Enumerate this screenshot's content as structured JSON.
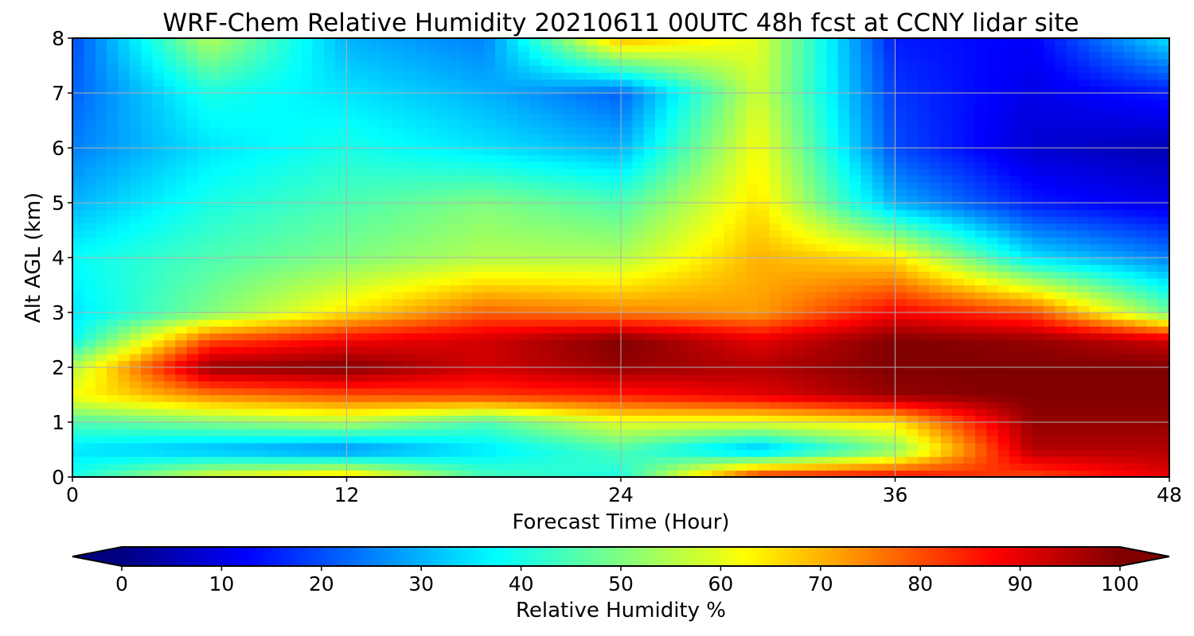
{
  "chart_data": {
    "type": "heatmap",
    "title": "WRF-Chem Relative Humidity 20210611 00UTC 48h fcst at CCNY lidar site",
    "xlabel": "Forecast Time (Hour)",
    "ylabel": "Alt AGL (km)",
    "xlim": [
      0,
      48
    ],
    "ylim": [
      0,
      8
    ],
    "x_ticks": [
      "0",
      "12",
      "24",
      "36",
      "48"
    ],
    "y_ticks": [
      "0",
      "1",
      "2",
      "3",
      "4",
      "5",
      "6",
      "7",
      "8"
    ],
    "grid": true,
    "colorbar": {
      "label": "Relative Humidity %",
      "range": [
        0,
        100
      ],
      "ticks": [
        "0",
        "10",
        "20",
        "30",
        "40",
        "50",
        "60",
        "70",
        "80",
        "90",
        "100"
      ],
      "colormap": "jet",
      "extend": "both"
    },
    "x": [
      0,
      6,
      12,
      18,
      24,
      30,
      36,
      42,
      48
    ],
    "y": [
      0,
      0.5,
      1,
      1.5,
      2,
      2.5,
      3,
      4,
      5,
      6,
      7,
      8
    ],
    "z": [
      [
        40,
        60,
        68,
        45,
        40,
        85,
        88,
        80,
        90
      ],
      [
        35,
        30,
        25,
        35,
        45,
        30,
        50,
        95,
        95
      ],
      [
        45,
        50,
        55,
        45,
        60,
        60,
        65,
        98,
        98
      ],
      [
        62,
        75,
        80,
        82,
        85,
        90,
        98,
        100,
        100
      ],
      [
        55,
        98,
        100,
        92,
        98,
        95,
        100,
        100,
        100
      ],
      [
        38,
        80,
        88,
        92,
        100,
        90,
        100,
        98,
        92
      ],
      [
        35,
        50,
        65,
        78,
        75,
        72,
        88,
        80,
        48
      ],
      [
        38,
        45,
        50,
        55,
        55,
        70,
        65,
        35,
        25
      ],
      [
        30,
        40,
        45,
        50,
        45,
        65,
        30,
        15,
        10
      ],
      [
        25,
        35,
        40,
        35,
        30,
        62,
        20,
        8,
        5
      ],
      [
        22,
        40,
        35,
        30,
        22,
        58,
        18,
        10,
        15
      ],
      [
        20,
        55,
        30,
        25,
        70,
        60,
        15,
        12,
        35
      ]
    ]
  }
}
